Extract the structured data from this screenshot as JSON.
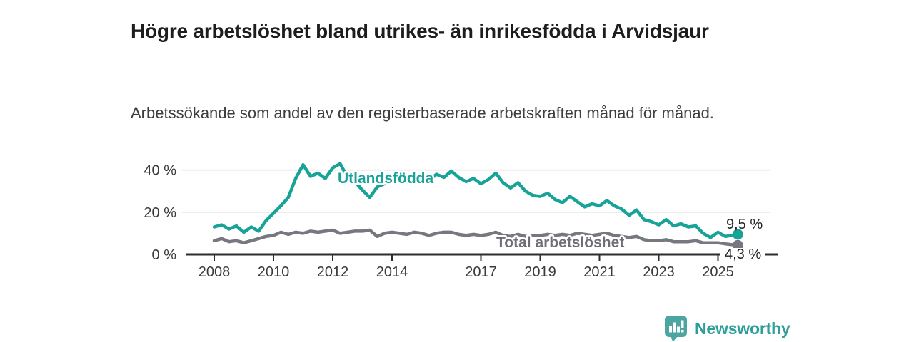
{
  "footer": {
    "brand": "Newsworthy",
    "brand_color": "#2e9e98",
    "icon": "bar-chart-speech-bubble-icon",
    "icon_color": "#4ba6a1"
  },
  "chart_data": {
    "type": "line",
    "title": "Högre arbetslöshet bland utrikes- än inrikesfödda i Arvidsjaur",
    "subtitle": "Arbetssökande som andel av den registerbaserade arbetskraften månad för månad.",
    "unit": "%",
    "grid": "horizontal",
    "legend_position": "inline-labels",
    "xlim": [
      2007.0,
      2026.2
    ],
    "ylim": [
      0,
      46
    ],
    "xticks": [
      2008,
      2010,
      2012,
      2014,
      2017,
      2019,
      2021,
      2023,
      2025
    ],
    "xtick_labels": [
      "2008",
      "2010",
      "2012",
      "2014",
      "2017",
      "2019",
      "2021",
      "2023",
      "2025"
    ],
    "yticks": [
      0,
      20,
      40
    ],
    "ytick_labels": [
      "0 %",
      "20 %",
      "40 %"
    ],
    "colors": {
      "grid": "#dadada",
      "axis": "#2d2d2d",
      "tick_text": "#3a3a3a",
      "value_label": "#222222"
    },
    "x": [
      2008.0,
      2008.25,
      2008.5,
      2008.75,
      2009.0,
      2009.25,
      2009.5,
      2009.75,
      2010.0,
      2010.25,
      2010.5,
      2010.75,
      2011.0,
      2011.25,
      2011.5,
      2011.75,
      2012.0,
      2012.25,
      2012.5,
      2012.75,
      2013.0,
      2013.25,
      2013.5,
      2013.75,
      2014.0,
      2014.25,
      2014.5,
      2014.75,
      2015.0,
      2015.25,
      2015.5,
      2015.75,
      2016.0,
      2016.25,
      2016.5,
      2016.75,
      2017.0,
      2017.25,
      2017.5,
      2017.75,
      2018.0,
      2018.25,
      2018.5,
      2018.75,
      2019.0,
      2019.25,
      2019.5,
      2019.75,
      2020.0,
      2020.25,
      2020.5,
      2020.75,
      2021.0,
      2021.25,
      2021.5,
      2021.75,
      2022.0,
      2022.25,
      2022.5,
      2022.75,
      2023.0,
      2023.25,
      2023.5,
      2023.75,
      2024.0,
      2024.25,
      2024.5,
      2024.75,
      2025.0,
      2025.25,
      2025.67
    ],
    "series": [
      {
        "name": "Utlandsfödda",
        "color": "#17a398",
        "end_label": "9,5 %",
        "values": [
          13.0,
          14.0,
          12.0,
          13.5,
          10.5,
          13.0,
          11.0,
          16.0,
          19.5,
          23.0,
          27.0,
          36.0,
          42.5,
          37.0,
          38.5,
          36.0,
          41.0,
          43.0,
          36.5,
          34.5,
          30.5,
          27.0,
          32.0,
          33.5,
          35.5,
          37.5,
          34.5,
          36.5,
          37.0,
          35.0,
          38.0,
          36.5,
          39.5,
          36.5,
          34.5,
          36.0,
          33.5,
          35.5,
          38.5,
          34.0,
          31.5,
          34.0,
          30.0,
          28.0,
          27.5,
          29.0,
          26.0,
          24.5,
          27.5,
          25.0,
          22.5,
          24.0,
          23.0,
          25.5,
          23.0,
          21.5,
          18.5,
          21.0,
          16.5,
          15.5,
          14.0,
          16.5,
          13.5,
          14.5,
          13.0,
          13.5,
          10.0,
          8.0,
          10.5,
          8.5,
          9.5
        ]
      },
      {
        "name": "Total arbetslöshet",
        "color": "#77777f",
        "label_color": "#6e6e78",
        "end_label": "4,3 %",
        "values": [
          6.5,
          7.5,
          6.0,
          6.5,
          5.5,
          6.5,
          7.5,
          8.5,
          9.0,
          10.5,
          9.5,
          10.5,
          10.0,
          11.0,
          10.5,
          11.0,
          11.5,
          10.0,
          10.5,
          11.0,
          11.0,
          11.5,
          8.5,
          10.0,
          10.5,
          10.0,
          9.5,
          10.5,
          10.0,
          9.0,
          10.0,
          10.5,
          10.5,
          9.5,
          9.0,
          9.5,
          9.0,
          9.5,
          10.5,
          9.0,
          8.5,
          9.5,
          8.5,
          9.0,
          9.0,
          9.5,
          9.0,
          9.5,
          9.0,
          10.0,
          9.5,
          9.0,
          9.5,
          10.0,
          9.0,
          8.5,
          8.0,
          8.5,
          7.0,
          6.5,
          6.5,
          7.0,
          6.0,
          6.0,
          6.0,
          6.5,
          5.5,
          5.5,
          5.5,
          5.0,
          4.3
        ]
      }
    ]
  }
}
